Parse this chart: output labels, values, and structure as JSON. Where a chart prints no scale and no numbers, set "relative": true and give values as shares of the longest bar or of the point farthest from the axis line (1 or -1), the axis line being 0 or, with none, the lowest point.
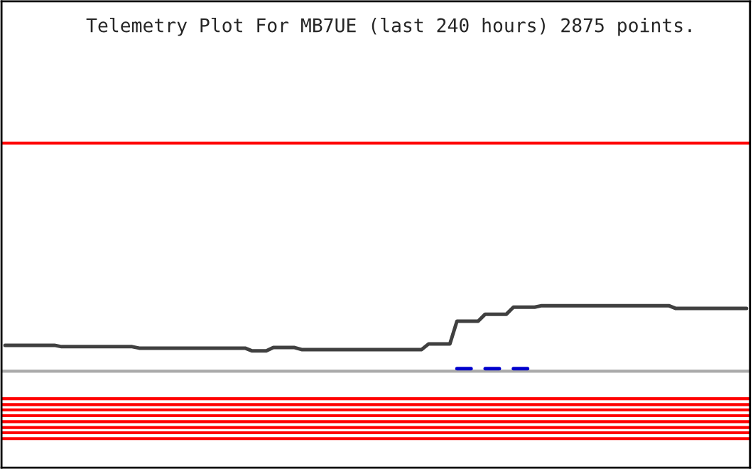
{
  "chart_data": {
    "type": "line",
    "title": "Telemetry Plot For MB7UE (last 240 hours) 2875 points.",
    "relative": true,
    "categories": [
      null,
      null,
      null,
      null,
      null,
      null,
      null,
      null,
      null,
      null,
      null,
      null,
      null,
      null,
      null,
      null,
      null,
      null,
      null,
      null,
      null,
      null,
      null,
      null,
      null,
      null,
      null,
      null,
      null,
      null,
      null,
      null,
      null,
      null,
      null,
      null,
      null,
      null,
      null,
      null,
      null,
      null,
      null,
      null,
      null,
      null,
      null,
      null,
      null,
      null,
      null,
      null,
      null,
      null,
      null,
      null,
      null,
      null,
      null,
      null,
      null,
      null,
      null,
      null,
      null,
      null,
      null,
      null,
      null,
      null,
      null,
      null,
      null,
      null,
      null,
      null,
      null,
      null,
      null,
      null,
      null,
      null,
      null,
      null,
      null,
      null,
      null,
      null,
      null,
      null,
      null,
      null,
      null,
      null,
      null,
      null,
      null,
      null,
      null,
      null,
      null,
      null,
      null,
      null,
      null,
      null
    ],
    "series": [
      {
        "color": "#404040",
        "values": [
          0.395,
          0.395,
          0.395,
          0.395,
          0.395,
          0.395,
          0.395,
          0.395,
          0.374,
          0.374,
          0.374,
          0.374,
          0.374,
          0.374,
          0.374,
          0.374,
          0.374,
          0.374,
          0.374,
          0.352,
          0.352,
          0.352,
          0.352,
          0.352,
          0.352,
          0.352,
          0.352,
          0.352,
          0.352,
          0.352,
          0.352,
          0.352,
          0.352,
          0.352,
          0.352,
          0.309,
          0.309,
          0.309,
          0.361,
          0.361,
          0.361,
          0.361,
          0.33,
          0.33,
          0.33,
          0.33,
          0.33,
          0.33,
          0.33,
          0.33,
          0.33,
          0.33,
          0.33,
          0.33,
          0.33,
          0.33,
          0.33,
          0.33,
          0.33,
          0.33,
          0.417,
          0.417,
          0.417,
          0.417,
          0.762,
          0.762,
          0.762,
          0.762,
          0.87,
          0.87,
          0.87,
          0.87,
          0.978,
          0.978,
          0.978,
          0.978,
          1,
          1,
          1,
          1,
          1,
          1,
          1,
          1,
          1,
          1,
          1,
          1,
          1,
          1,
          1,
          1,
          1,
          1,
          1,
          0.957,
          0.957,
          0.957,
          0.957,
          0.957,
          0.957,
          0.957,
          0.957,
          0.957,
          0.957,
          0.957
        ]
      },
      {
        "color": "#0000cc",
        "values": [
          null,
          null,
          null,
          null,
          null,
          null,
          null,
          null,
          null,
          null,
          null,
          null,
          null,
          null,
          null,
          null,
          null,
          null,
          null,
          null,
          null,
          null,
          null,
          null,
          null,
          null,
          null,
          null,
          null,
          null,
          null,
          null,
          null,
          null,
          null,
          null,
          null,
          null,
          null,
          null,
          null,
          null,
          null,
          null,
          null,
          null,
          null,
          null,
          null,
          null,
          null,
          null,
          null,
          null,
          null,
          null,
          null,
          null,
          null,
          null,
          null,
          null,
          null,
          null,
          0.04,
          0.04,
          0.04,
          null,
          0.04,
          0.04,
          0.04,
          null,
          0.04,
          0.04,
          0.04,
          null,
          null,
          null,
          null,
          null,
          null,
          null,
          null,
          null,
          null,
          null,
          null,
          null,
          null,
          null,
          null,
          null,
          null,
          null,
          null,
          null,
          null,
          null,
          null,
          null,
          null,
          null,
          null,
          null,
          null,
          null
        ]
      }
    ],
    "ref_lines": [
      {
        "axis": "y",
        "value": 3.48,
        "color": "#ff0000"
      },
      {
        "axis": "y",
        "value": 0,
        "color": "#aaaaaa"
      },
      {
        "axis": "y",
        "value": -0.42,
        "color": "#ff0000"
      },
      {
        "axis": "y",
        "value": -0.51,
        "color": "#ff0000"
      },
      {
        "axis": "y",
        "value": -0.59,
        "color": "#ff0000"
      },
      {
        "axis": "y",
        "value": -0.68,
        "color": "#ff0000"
      },
      {
        "axis": "y",
        "value": -0.77,
        "color": "#ff0000"
      },
      {
        "axis": "y",
        "value": -0.86,
        "color": "#ff0000"
      },
      {
        "axis": "y",
        "value": -0.94,
        "color": "#ff0000"
      },
      {
        "axis": "y",
        "value": -1.03,
        "color": "#ff0000"
      }
    ]
  }
}
